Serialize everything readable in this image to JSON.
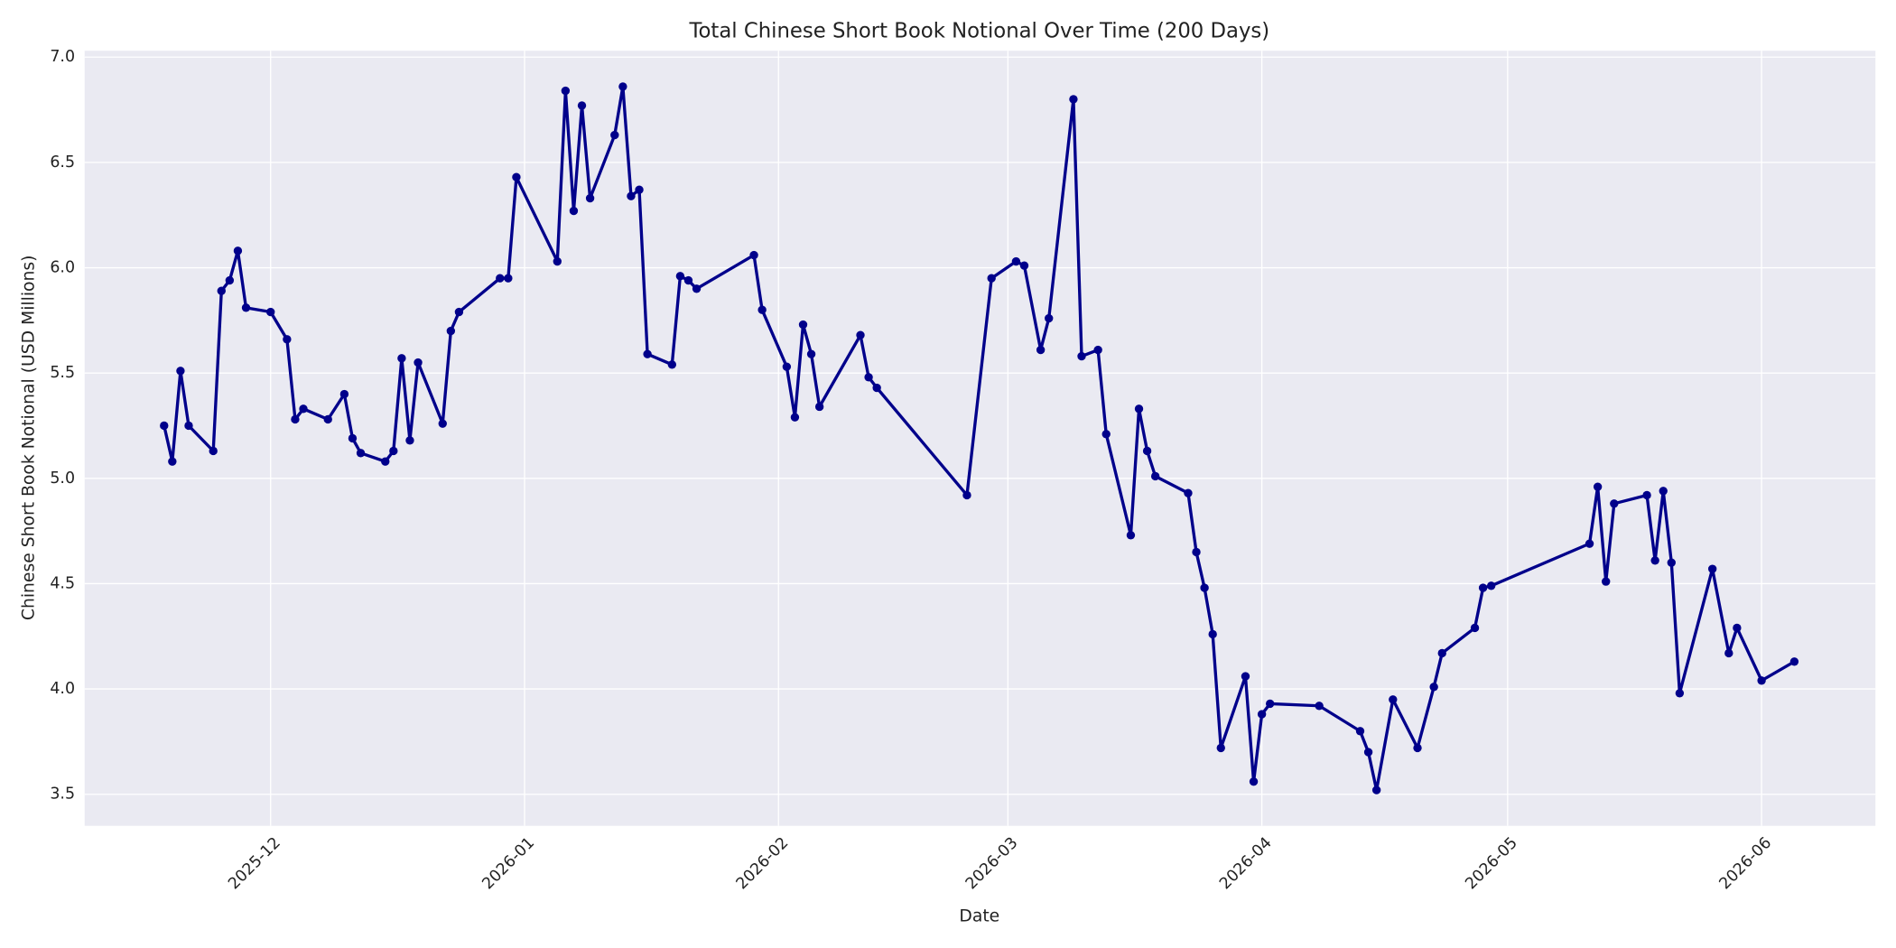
{
  "chart_data": {
    "type": "line",
    "title": "Total Chinese Short Book Notional Over Time (200 Days)",
    "xlabel": "Date",
    "ylabel": "Chinese Short Book Notional (USD Millions)",
    "color": "#00008b",
    "grid": true,
    "x": [
      -13,
      -12,
      -11,
      -10,
      -7,
      -6,
      -5,
      -4,
      -3,
      0,
      2,
      3,
      4,
      7,
      9,
      10,
      11,
      14,
      15,
      16,
      17,
      18,
      21,
      22,
      23,
      28,
      29,
      30,
      35,
      36,
      37,
      38,
      39,
      42,
      43,
      44,
      45,
      46,
      49,
      50,
      51,
      52,
      59,
      60,
      63,
      64,
      65,
      66,
      67,
      72,
      73,
      74,
      85,
      88,
      91,
      92,
      94,
      95,
      98,
      99,
      101,
      102,
      105,
      106,
      107,
      108,
      112,
      113,
      114,
      115,
      116,
      119,
      120,
      121,
      122,
      128,
      133,
      134,
      135,
      137,
      140,
      142,
      143,
      147,
      148,
      149,
      161,
      162,
      163,
      164,
      168,
      169,
      170,
      171,
      172,
      176,
      178,
      179,
      182,
      186
    ],
    "values": [
      5.25,
      5.08,
      5.51,
      5.25,
      5.13,
      5.89,
      5.94,
      6.08,
      5.81,
      5.79,
      5.66,
      5.28,
      5.33,
      5.28,
      5.4,
      5.19,
      5.12,
      5.08,
      5.13,
      5.57,
      5.18,
      5.55,
      5.26,
      5.7,
      5.79,
      5.95,
      5.95,
      6.43,
      6.03,
      6.84,
      6.27,
      6.77,
      6.33,
      6.63,
      6.86,
      6.34,
      6.37,
      5.59,
      5.54,
      5.96,
      5.94,
      5.9,
      6.06,
      5.8,
      5.53,
      5.29,
      5.73,
      5.59,
      5.34,
      5.68,
      5.48,
      5.43,
      4.92,
      5.95,
      6.03,
      6.01,
      5.61,
      5.76,
      6.8,
      5.58,
      5.61,
      5.21,
      4.73,
      5.33,
      5.13,
      5.01,
      4.93,
      4.65,
      4.48,
      4.26,
      3.72,
      4.06,
      3.56,
      3.88,
      3.93,
      3.92,
      3.8,
      3.7,
      3.52,
      3.95,
      3.72,
      4.01,
      4.17,
      4.29,
      4.48,
      4.49,
      4.69,
      4.96,
      4.51,
      4.88,
      4.92,
      4.61,
      4.94,
      4.6,
      3.98,
      4.57,
      4.17,
      4.29,
      4.04,
      4.13
    ],
    "xlim": [
      -22.7,
      195.9
    ],
    "xticks": [
      {
        "value": 0,
        "label": "2025-12"
      },
      {
        "value": 31,
        "label": "2026-01"
      },
      {
        "value": 62,
        "label": "2026-02"
      },
      {
        "value": 90,
        "label": "2026-03"
      },
      {
        "value": 121,
        "label": "2026-04"
      },
      {
        "value": 151,
        "label": "2026-05"
      },
      {
        "value": 182,
        "label": "2026-06"
      }
    ],
    "ylim": [
      3.35,
      7.03
    ],
    "yticks": [
      3.5,
      {
        "value": 4,
        "label": "4.0"
      },
      4.5,
      {
        "value": 5,
        "label": "5.0"
      },
      5.5,
      {
        "value": 6,
        "label": "6.0"
      },
      6.5,
      {
        "value": 7,
        "label": "7.0"
      }
    ]
  }
}
